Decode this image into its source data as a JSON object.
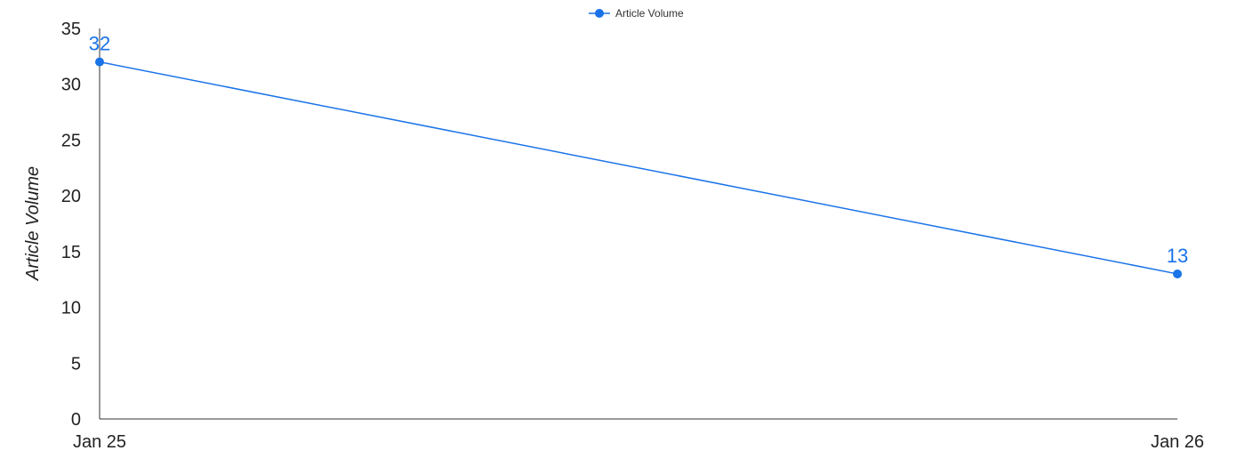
{
  "chart_data": {
    "type": "line",
    "x": [
      "Jan 25",
      "Jan 26"
    ],
    "series": [
      {
        "name": "Article Volume",
        "values": [
          32,
          13
        ],
        "data_labels": [
          "32",
          "13"
        ],
        "color": "#1a73e8"
      }
    ],
    "ylabel": "Article Volume",
    "xlabel": "",
    "ylim": [
      0,
      35
    ],
    "y_ticks": [
      "0",
      "5",
      "10",
      "15",
      "20",
      "25",
      "30",
      "35"
    ],
    "y_tick_values": [
      0,
      5,
      10,
      15,
      20,
      25,
      30,
      35
    ],
    "legend": {
      "position": "top-center",
      "label": "Article Volume"
    },
    "grid": false
  }
}
